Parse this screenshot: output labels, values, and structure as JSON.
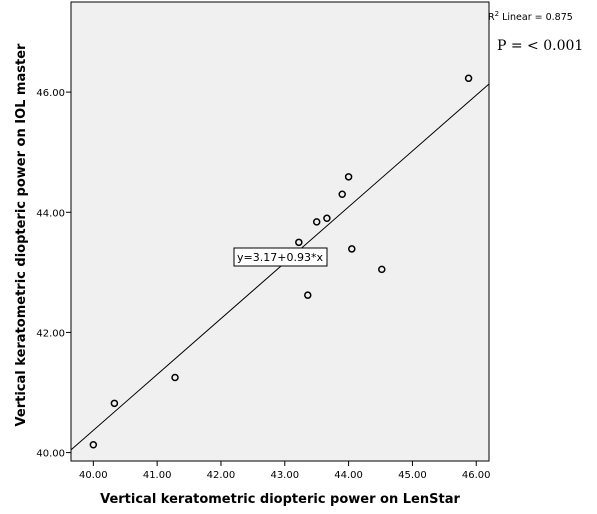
{
  "chart_data": {
    "type": "scatter",
    "xlabel": "Vertical keratometric diopteric power on LenStar",
    "ylabel": "Vertical keratometric diopteric power on IOL master",
    "xlim": [
      39.65,
      46.2
    ],
    "ylim": [
      39.86,
      47.5
    ],
    "xticks": [
      40.0,
      41.0,
      42.0,
      43.0,
      44.0,
      45.0,
      46.0
    ],
    "xtick_labels": [
      "40.00",
      "41.00",
      "42.00",
      "43.00",
      "44.00",
      "45.00",
      "46.00"
    ],
    "yticks": [
      40.0,
      42.0,
      44.0,
      46.0
    ],
    "ytick_labels": [
      "40.00",
      "42.00",
      "44.00",
      "46.00"
    ],
    "points": [
      {
        "x": 40.0,
        "y": 40.13
      },
      {
        "x": 40.33,
        "y": 40.82
      },
      {
        "x": 41.28,
        "y": 41.25
      },
      {
        "x": 43.22,
        "y": 43.5
      },
      {
        "x": 43.36,
        "y": 42.62
      },
      {
        "x": 43.5,
        "y": 43.84
      },
      {
        "x": 43.66,
        "y": 43.9
      },
      {
        "x": 43.9,
        "y": 44.3
      },
      {
        "x": 44.0,
        "y": 44.59
      },
      {
        "x": 44.05,
        "y": 43.39
      },
      {
        "x": 44.52,
        "y": 43.05
      },
      {
        "x": 45.88,
        "y": 46.23
      }
    ],
    "fit": {
      "intercept": 3.17,
      "slope": 0.93,
      "label": "y=3.17+0.93*x"
    },
    "r2_label": "Linear = 0.875",
    "r2_prefix": "R",
    "r2_sup": "2",
    "p_label": "P = < 0.001",
    "grid": false
  }
}
